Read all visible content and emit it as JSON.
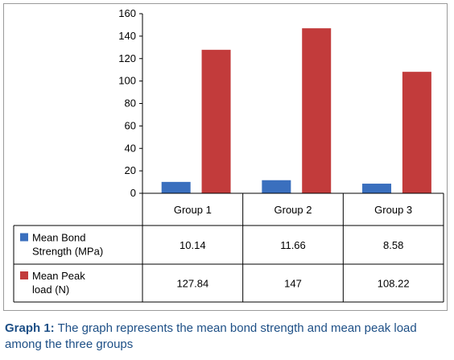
{
  "chart_data": {
    "type": "bar",
    "categories": [
      "Group 1",
      "Group 2",
      "Group 3"
    ],
    "series": [
      {
        "name": "Mean Bond Strength  (MPa)",
        "values": [
          10.14,
          11.66,
          8.58
        ],
        "color": "#3a6fbe",
        "legend_lines": [
          "Mean Bond",
          "Strength  (MPa)"
        ]
      },
      {
        "name": "Mean Peak load (N)",
        "values": [
          127.84,
          147,
          108.22
        ],
        "color": "#c23b3b",
        "legend_lines": [
          "Mean Peak",
          "load (N)"
        ]
      }
    ],
    "ylim": [
      0,
      160
    ],
    "yticks": [
      0,
      20,
      40,
      60,
      80,
      100,
      120,
      140,
      160
    ],
    "table": {
      "rows": [
        {
          "values": [
            "10.14",
            "11.66",
            "8.58"
          ]
        },
        {
          "values": [
            "127.84",
            "147",
            "108.22"
          ]
        }
      ]
    },
    "grid": false,
    "legend": "data-table"
  },
  "caption": {
    "label": "Graph 1:",
    "text": "The graph represents the mean bond strength and mean peak load among the three groups"
  }
}
